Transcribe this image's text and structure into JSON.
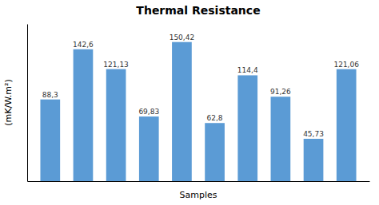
{
  "chart_data": {
    "type": "bar",
    "title": "Thermal Resistance",
    "xlabel": "Samples",
    "ylabel": "(mK/W.m²)",
    "categories": [
      null,
      null,
      null,
      null,
      null,
      null,
      null,
      null,
      null,
      null
    ],
    "values": [
      88.3,
      142.6,
      121.13,
      69.83,
      150.42,
      62.8,
      114.4,
      91.26,
      45.73,
      121.06
    ],
    "value_labels": [
      "88,3",
      "142,6",
      "121,13",
      "69,83",
      "150,42",
      "62,8",
      "114,4",
      "91,26",
      "45,73",
      "121,06"
    ],
    "data_labels": true,
    "color": "#5B9BD5",
    "ylim": [
      0,
      170
    ],
    "grid": false,
    "tick_labels": false
  }
}
